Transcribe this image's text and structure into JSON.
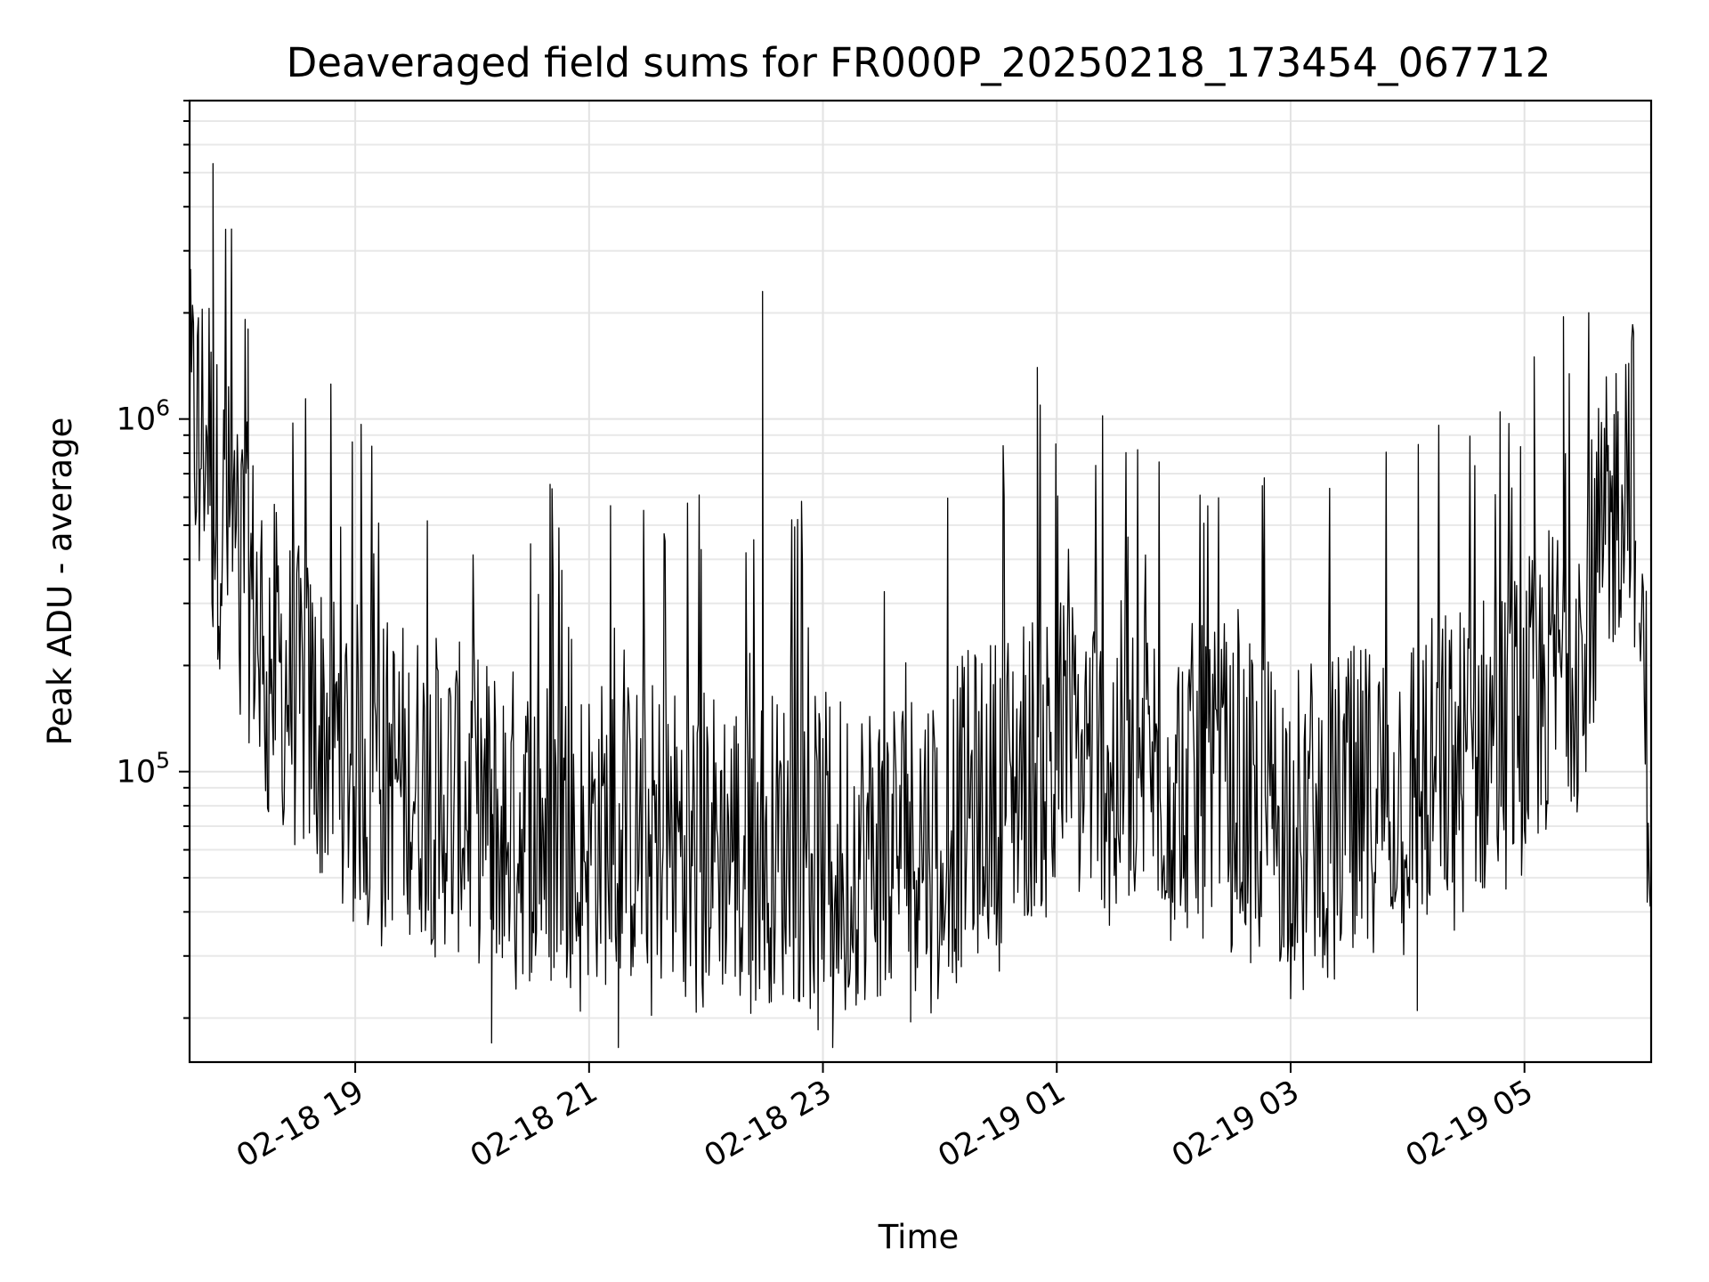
{
  "chart_data": {
    "type": "line",
    "title": "Deaveraged field sums for FR000P_20250218_173454_067712",
    "xlabel": "Time",
    "ylabel": "Peak ADU - average",
    "yscale": "log",
    "ylim": [
      15000,
      8000000
    ],
    "xlim": [
      "02-18 17:35",
      "02-19 06:05"
    ],
    "x_ticks": [
      "02-18 19",
      "02-18 21",
      "02-18 23",
      "02-19 01",
      "02-19 03",
      "02-19 05"
    ],
    "y_ticks": [
      {
        "base": "10",
        "exp": "5",
        "value": 100000
      },
      {
        "base": "10",
        "exp": "6",
        "value": 1000000
      }
    ],
    "grid": true,
    "legend": "none",
    "line_color": "#000000",
    "series": [
      {
        "x": [
          "02-18 17:35",
          "02-18 17:45",
          "02-18 17:47",
          "02-18 18:00",
          "02-18 18:10",
          "02-18 18:20",
          "02-18 18:30",
          "02-18 18:45",
          "02-18 19:00",
          "02-18 19:30",
          "02-18 20:00",
          "02-18 20:30",
          "02-18 21:00",
          "02-18 21:30",
          "02-18 22:00",
          "02-18 22:30",
          "02-18 23:00",
          "02-18 23:30",
          "02-19 00:00",
          "02-19 00:30",
          "02-19 01:00",
          "02-19 01:30",
          "02-19 02:00",
          "02-19 02:30",
          "02-19 03:00",
          "02-19 03:30",
          "02-19 04:00",
          "02-19 04:30",
          "02-19 05:00",
          "02-19 05:30",
          "02-19 05:55",
          "02-19 06:05"
        ],
        "median": [
          950000,
          950000,
          600000,
          420000,
          280000,
          200000,
          160000,
          130000,
          110000,
          95000,
          80000,
          70000,
          68000,
          66000,
          64000,
          62000,
          60000,
          62000,
          70000,
          90000,
          120000,
          110000,
          100000,
          85000,
          75000,
          80000,
          95000,
          110000,
          140000,
          260000,
          900000,
          70000
        ],
        "peaks": [
          {
            "x": "02-18 17:47",
            "y": 5300000
          },
          {
            "x": "02-18 18:05",
            "y": 1800000
          },
          {
            "x": "02-18 22:29",
            "y": 2300000
          },
          {
            "x": "02-19 00:50",
            "y": 1400000
          },
          {
            "x": "02-19 05:20",
            "y": 1950000
          },
          {
            "x": "02-19 05:05",
            "y": 1500000
          },
          {
            "x": "02-19 05:58",
            "y": 1400000
          }
        ],
        "troughs": [
          {
            "x": "02-18 20:10",
            "y": 17000
          },
          {
            "x": "02-18 21:15",
            "y": 16500
          },
          {
            "x": "02-18 23:05",
            "y": 16500
          },
          {
            "x": "02-18 23:45",
            "y": 19500
          },
          {
            "x": "02-19 04:05",
            "y": 21000
          }
        ]
      }
    ]
  }
}
